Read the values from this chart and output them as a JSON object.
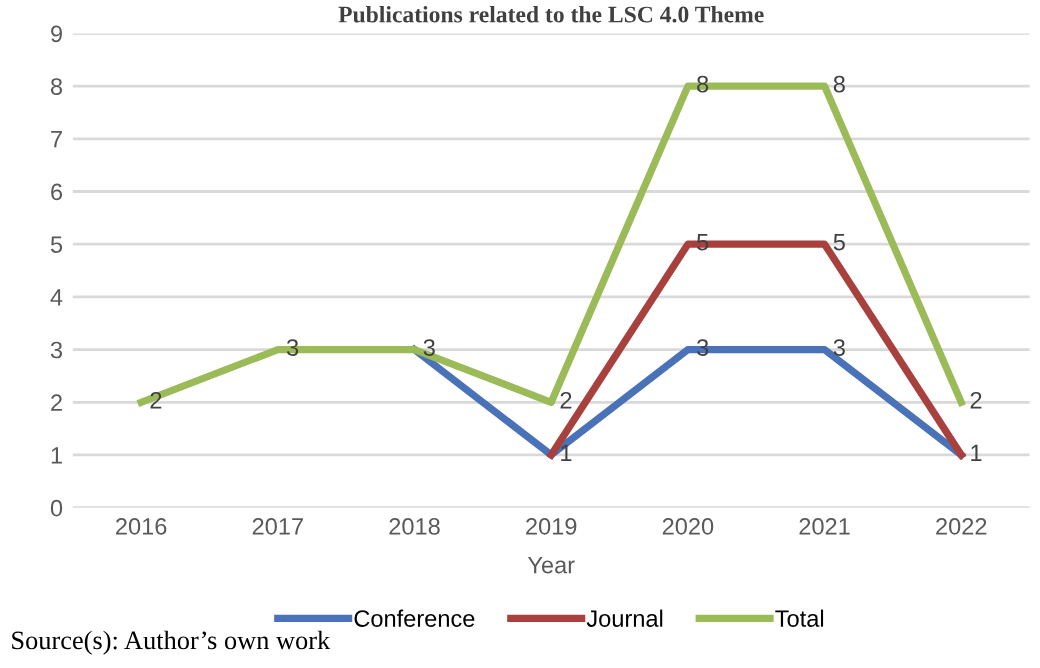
{
  "chart_data": {
    "type": "line",
    "title": "Publications related to the LSC 4.0 Theme",
    "xlabel": "Year",
    "categories": [
      "2016",
      "2017",
      "2018",
      "2019",
      "2020",
      "2021",
      "2022"
    ],
    "series": [
      {
        "name": "Conference",
        "color": "#4a72b8",
        "values": [
          null,
          null,
          3,
          1,
          3,
          3,
          1
        ],
        "value_labels": [
          null,
          null,
          null,
          "1",
          "3",
          "3",
          "1"
        ]
      },
      {
        "name": "Journal",
        "color": "#a8403e",
        "values": [
          null,
          null,
          null,
          1,
          5,
          5,
          1
        ],
        "value_labels": [
          null,
          null,
          null,
          null,
          "5",
          "5",
          null
        ]
      },
      {
        "name": "Total",
        "color": "#9bbb59",
        "values": [
          2,
          3,
          3,
          2,
          8,
          8,
          2
        ],
        "value_labels": [
          "2",
          "3",
          "3",
          "2",
          "8",
          "8",
          "2"
        ]
      }
    ],
    "ylim": [
      0,
      9
    ],
    "yticks": [
      0,
      1,
      2,
      3,
      4,
      5,
      6,
      7,
      8,
      9
    ],
    "grid": "y",
    "legend": "bottom",
    "marker": "none",
    "line_style": "solid",
    "annotations": [
      "Source(s): Author’s own work"
    ]
  }
}
